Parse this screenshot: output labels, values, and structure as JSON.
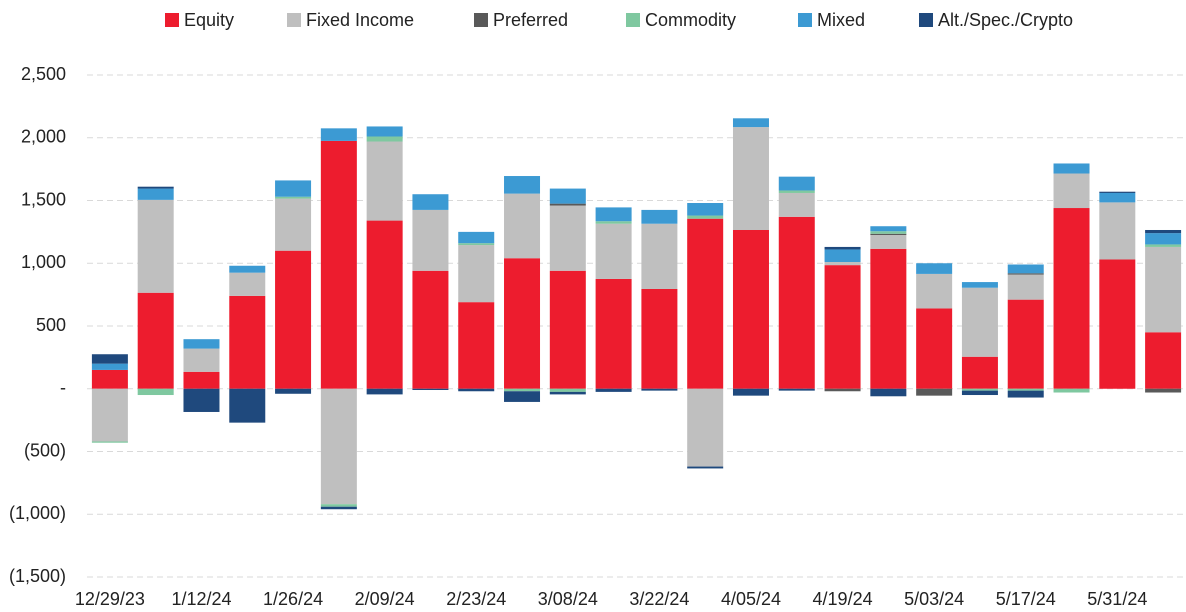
{
  "chart_data": {
    "type": "stacked_bar",
    "categories": [
      "12/29/23",
      null,
      "1/12/24",
      null,
      "1/26/24",
      null,
      "2/09/24",
      null,
      "2/23/24",
      null,
      "3/08/24",
      null,
      "3/22/24",
      null,
      "4/05/24",
      null,
      "4/19/24",
      null,
      "5/03/24",
      null,
      "5/17/24",
      null,
      "5/31/24",
      null
    ],
    "series": [
      {
        "name": "Equity",
        "color": "#ed1c2e",
        "values": [
          150,
          765,
          135,
          740,
          1100,
          1975,
          1340,
          940,
          690,
          1040,
          940,
          875,
          795,
          1355,
          1265,
          1370,
          985,
          1115,
          640,
          255,
          710,
          1440,
          1030,
          450
        ]
      },
      {
        "name": "Fixed Income",
        "color": "#bfbfbf",
        "values": [
          -420,
          740,
          185,
          185,
          415,
          -920,
          630,
          485,
          455,
          515,
          520,
          440,
          520,
          -620,
          820,
          190,
          25,
          110,
          275,
          550,
          200,
          275,
          455,
          680
        ]
      },
      {
        "name": "Preferred",
        "color": "#595959",
        "values": [
          0,
          0,
          0,
          0,
          0,
          0,
          0,
          0,
          0,
          0,
          15,
          0,
          0,
          0,
          0,
          0,
          -20,
          10,
          -55,
          0,
          10,
          0,
          0,
          -30
        ]
      },
      {
        "name": "Commodity",
        "color": "#7fc8a0",
        "values": [
          -10,
          -50,
          0,
          0,
          15,
          -20,
          40,
          0,
          15,
          -20,
          -25,
          20,
          0,
          25,
          0,
          20,
          0,
          20,
          0,
          -15,
          -15,
          -30,
          0,
          20
        ]
      },
      {
        "name": "Mixed",
        "color": "#3c9ad3",
        "values": [
          50,
          90,
          75,
          55,
          130,
          100,
          80,
          125,
          90,
          140,
          120,
          110,
          110,
          100,
          70,
          110,
          100,
          40,
          85,
          45,
          70,
          80,
          75,
          90
        ]
      },
      {
        "name": "Alt./Spec./Crypto",
        "color": "#1f497d",
        "values": [
          75,
          15,
          -185,
          -270,
          -40,
          -20,
          -45,
          -10,
          -20,
          -85,
          -20,
          -25,
          -15,
          -15,
          -55,
          -15,
          20,
          -60,
          0,
          -35,
          -55,
          0,
          10,
          25
        ]
      }
    ],
    "ylim": [
      -1500,
      2500
    ],
    "yticks": [
      {
        "value": -1500,
        "label": "(1,500)"
      },
      {
        "value": -1000,
        "label": "(1,000)"
      },
      {
        "value": -500,
        "label": "(500)"
      },
      {
        "value": 0,
        "label": "-"
      },
      500,
      {
        "value": 1000,
        "label": "1,000"
      },
      {
        "value": 1500,
        "label": "1,500"
      },
      {
        "value": 2000,
        "label": "2,000"
      },
      {
        "value": 2500,
        "label": "2,500"
      }
    ],
    "grid": true,
    "legend": "top"
  }
}
